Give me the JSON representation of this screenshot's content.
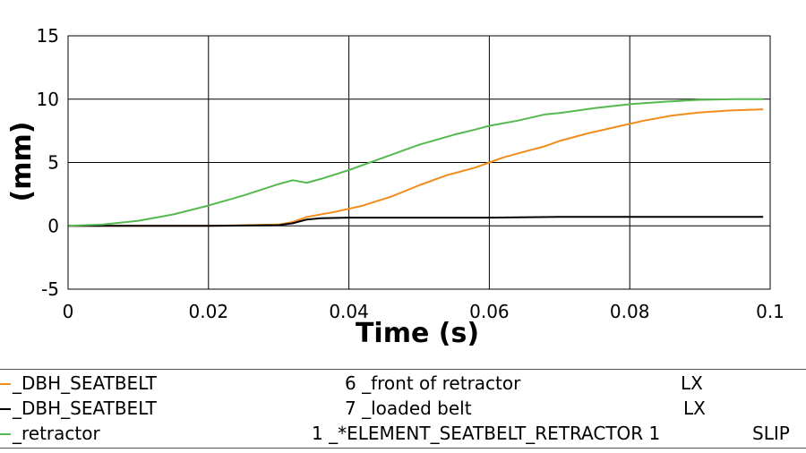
{
  "chart_data": {
    "type": "line",
    "xlabel": "Time (s)",
    "ylabel": "(mm)",
    "xlim": [
      0,
      0.1
    ],
    "ylim": [
      -5,
      15
    ],
    "xticks": [
      0,
      0.02,
      0.04,
      0.06,
      0.08,
      0.1
    ],
    "xtick_labels": [
      "0",
      "0.02",
      "0.04",
      "0.06",
      "0.08",
      "0.1"
    ],
    "yticks": [
      -5,
      0,
      5,
      10,
      15
    ],
    "ytick_labels": [
      "-5",
      "0",
      "5",
      "10",
      "15"
    ],
    "grid": true,
    "legend_position": "bottom",
    "series": [
      {
        "name": "_DBH_SEATBELT",
        "entity": "6 _front of retractor",
        "component": "LX",
        "color": "#f28c1c",
        "x": [
          0,
          0.01,
          0.02,
          0.03,
          0.032,
          0.034,
          0.038,
          0.042,
          0.046,
          0.05,
          0.054,
          0.058,
          0.06,
          0.062,
          0.066,
          0.068,
          0.07,
          0.074,
          0.078,
          0.082,
          0.086,
          0.09,
          0.094,
          0.099
        ],
        "y": [
          0,
          0,
          0,
          0.1,
          0.3,
          0.7,
          1.1,
          1.6,
          2.3,
          3.2,
          4.0,
          4.6,
          5.0,
          5.4,
          6.0,
          6.3,
          6.7,
          7.3,
          7.8,
          8.3,
          8.7,
          8.95,
          9.1,
          9.2
        ]
      },
      {
        "name": "_DBH_SEATBELT",
        "entity": "7 _loaded belt",
        "component": "LX",
        "color": "#000000",
        "x": [
          0,
          0.01,
          0.02,
          0.03,
          0.032,
          0.034,
          0.036,
          0.04,
          0.045,
          0.05,
          0.06,
          0.07,
          0.08,
          0.09,
          0.099
        ],
        "y": [
          0,
          0,
          0,
          0.05,
          0.2,
          0.5,
          0.6,
          0.65,
          0.65,
          0.65,
          0.65,
          0.7,
          0.7,
          0.7,
          0.7
        ]
      },
      {
        "name": "_retractor",
        "entity": "1 _*ELEMENT_SEATBELT_RETRACTOR 1",
        "component": "SLIP",
        "color": "#55b94f",
        "x": [
          0,
          0.005,
          0.01,
          0.015,
          0.02,
          0.025,
          0.03,
          0.032,
          0.034,
          0.036,
          0.04,
          0.045,
          0.05,
          0.055,
          0.058,
          0.06,
          0.064,
          0.068,
          0.07,
          0.075,
          0.08,
          0.085,
          0.09,
          0.095,
          0.099
        ],
        "y": [
          0,
          0.1,
          0.4,
          0.9,
          1.6,
          2.4,
          3.3,
          3.6,
          3.4,
          3.7,
          4.4,
          5.4,
          6.4,
          7.2,
          7.6,
          7.9,
          8.3,
          8.8,
          8.9,
          9.3,
          9.6,
          9.8,
          9.95,
          10.0,
          10.0
        ]
      }
    ]
  }
}
